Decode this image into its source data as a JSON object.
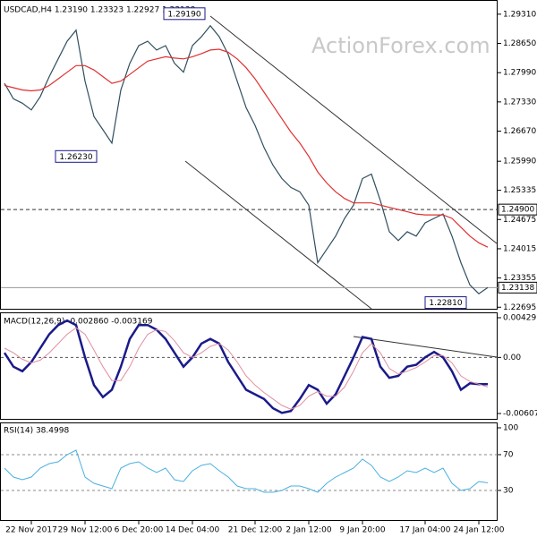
{
  "chart_data": [
    {
      "type": "line",
      "title": "USDCAD,H4  1.23190 1.23323 1.22927 1.23138",
      "watermark": "ActionForex.com",
      "ylim": [
        1.2266,
        1.2959
      ],
      "yticks": [
        {
          "value": 1.2931,
          "label": "1.29310"
        },
        {
          "value": 1.2865,
          "label": "1.28650"
        },
        {
          "value": 1.2799,
          "label": "1.27990"
        },
        {
          "value": 1.2733,
          "label": "1.27330"
        },
        {
          "value": 1.2667,
          "label": "1.26670"
        },
        {
          "value": 1.2599,
          "label": "1.25990"
        },
        1.25335,
        1.24675,
        1.24015,
        1.23355,
        1.22695
      ],
      "series": [
        {
          "color": "#2f4f5f",
          "values": [
            1.2775,
            1.274,
            1.273,
            1.2715,
            1.2745,
            1.279,
            1.283,
            1.287,
            1.2895,
            1.278,
            1.27,
            1.267,
            1.264,
            1.276,
            1.282,
            1.286,
            1.287,
            1.285,
            1.286,
            1.282,
            1.28,
            1.286,
            1.288,
            1.2905,
            1.288,
            1.284,
            1.278,
            1.272,
            1.268,
            1.263,
            1.259,
            1.256,
            1.254,
            1.253,
            1.25,
            1.237,
            1.24,
            1.243,
            1.247,
            1.25,
            1.256,
            1.257,
            1.251,
            1.244,
            1.242,
            1.244,
            1.243,
            1.246,
            1.247,
            1.248,
            1.243,
            1.237,
            1.232,
            1.23,
            1.2314
          ]
        },
        {
          "color": "#e03030",
          "values": [
            1.277,
            1.2765,
            1.276,
            1.2758,
            1.276,
            1.277,
            1.2785,
            1.28,
            1.2815,
            1.2815,
            1.2805,
            1.279,
            1.2775,
            1.278,
            1.2795,
            1.281,
            1.2825,
            1.283,
            1.2835,
            1.2832,
            1.283,
            1.2835,
            1.2842,
            1.285,
            1.2852,
            1.2845,
            1.283,
            1.281,
            1.2785,
            1.2755,
            1.2725,
            1.2695,
            1.2665,
            1.264,
            1.261,
            1.2575,
            1.255,
            1.253,
            1.2515,
            1.2505,
            1.2505,
            1.2505,
            1.25,
            1.2495,
            1.249,
            1.2485,
            1.248,
            1.2478,
            1.2478,
            1.2478,
            1.247,
            1.245,
            1.243,
            1.2415,
            1.2405
          ]
        }
      ],
      "levels": [
        {
          "value": 1.249,
          "label": "1.24900",
          "style": "dashed"
        },
        {
          "value": 1.23138,
          "label": "1.23138",
          "style": "solid"
        }
      ],
      "annotations": [
        {
          "value": 1.2919,
          "label": "1.29190",
          "position": "above"
        },
        {
          "value": 1.2623,
          "label": "1.26230",
          "position": "below"
        },
        {
          "value": 1.2281,
          "label": "1.22810",
          "position": "center"
        }
      ]
    },
    {
      "type": "line",
      "title": "MACD(12,26,9) -0.002860 -0.003169",
      "ylim": [
        -0.00665,
        0.00478
      ],
      "yticks": [
        0.004297,
        {
          "value": 0,
          "label": "0.00"
        },
        -0.006071
      ],
      "zero_line": true,
      "series": [
        {
          "color": "#1a1a8a",
          "values": [
            0.0005,
            -0.001,
            -0.0015,
            -0.0005,
            0.001,
            0.0025,
            0.0035,
            0.004,
            0.0035,
            0.0,
            -0.003,
            -0.0043,
            -0.0035,
            -0.001,
            0.002,
            0.0035,
            0.0035,
            0.003,
            0.002,
            0.0005,
            -0.001,
            0.0,
            0.0015,
            0.002,
            0.0015,
            -0.0005,
            -0.002,
            -0.0035,
            -0.004,
            -0.0045,
            -0.0055,
            -0.006,
            -0.0058,
            -0.0045,
            -0.003,
            -0.0035,
            -0.005,
            -0.004,
            -0.002,
            0.0,
            0.0022,
            0.002,
            -0.001,
            -0.0022,
            -0.002,
            -0.001,
            -0.0008,
            0.0,
            0.0006,
            0.0,
            -0.0015,
            -0.0035,
            -0.0028,
            -0.0029,
            -0.0029
          ]
        },
        {
          "color": "#e090a0",
          "values": [
            0.001,
            0.0005,
            -0.0002,
            -0.0006,
            -0.0003,
            0.0005,
            0.0015,
            0.0025,
            0.0032,
            0.0025,
            0.0008,
            -0.001,
            -0.0025,
            -0.0025,
            -0.001,
            0.001,
            0.0025,
            0.003,
            0.0028,
            0.0018,
            0.0005,
            0.0,
            0.0005,
            0.0012,
            0.0015,
            0.0008,
            -0.0005,
            -0.002,
            -0.003,
            -0.0038,
            -0.0045,
            -0.0052,
            -0.0056,
            -0.0052,
            -0.0042,
            -0.0037,
            -0.0042,
            -0.0042,
            -0.0032,
            -0.0015,
            0.0005,
            0.0015,
            0.0005,
            -0.0012,
            -0.0018,
            -0.0015,
            -0.0011,
            -0.0005,
            0.0002,
            0.0002,
            -0.0006,
            -0.002,
            -0.0026,
            -0.0029,
            -0.0032
          ]
        }
      ]
    },
    {
      "type": "line",
      "title": "RSI(14) 38.4998",
      "ylim": [
        0,
        100
      ],
      "yticks": [
        100,
        70,
        30
      ],
      "grid": true,
      "categories": [
        null,
        null,
        null,
        "22 Nov 2017",
        null,
        null,
        null,
        null,
        null,
        "29 Nov 12:00",
        null,
        null,
        null,
        null,
        null,
        "6 Dec 20:00",
        null,
        null,
        null,
        null,
        null,
        "14 Dec 04:00",
        null,
        null,
        null,
        null,
        null,
        null,
        "21 Dec 12:00",
        null,
        null,
        null,
        null,
        null,
        "2 Jan 12:00",
        null,
        null,
        null,
        null,
        null,
        "9 Jan 20:00",
        null,
        null,
        null,
        null,
        null,
        null,
        "17 Jan 04:00",
        null,
        null,
        null,
        null,
        null,
        "24 Jan 12:00",
        null
      ],
      "series": [
        {
          "color": "#4ab0e0",
          "values": [
            55,
            45,
            42,
            45,
            55,
            60,
            62,
            70,
            75,
            45,
            38,
            35,
            32,
            55,
            60,
            62,
            55,
            50,
            55,
            42,
            40,
            52,
            58,
            60,
            52,
            45,
            35,
            32,
            32,
            28,
            28,
            30,
            35,
            35,
            32,
            28,
            38,
            45,
            50,
            55,
            65,
            58,
            45,
            40,
            45,
            52,
            50,
            55,
            50,
            55,
            38,
            30,
            32,
            40,
            38.5
          ]
        }
      ]
    }
  ]
}
